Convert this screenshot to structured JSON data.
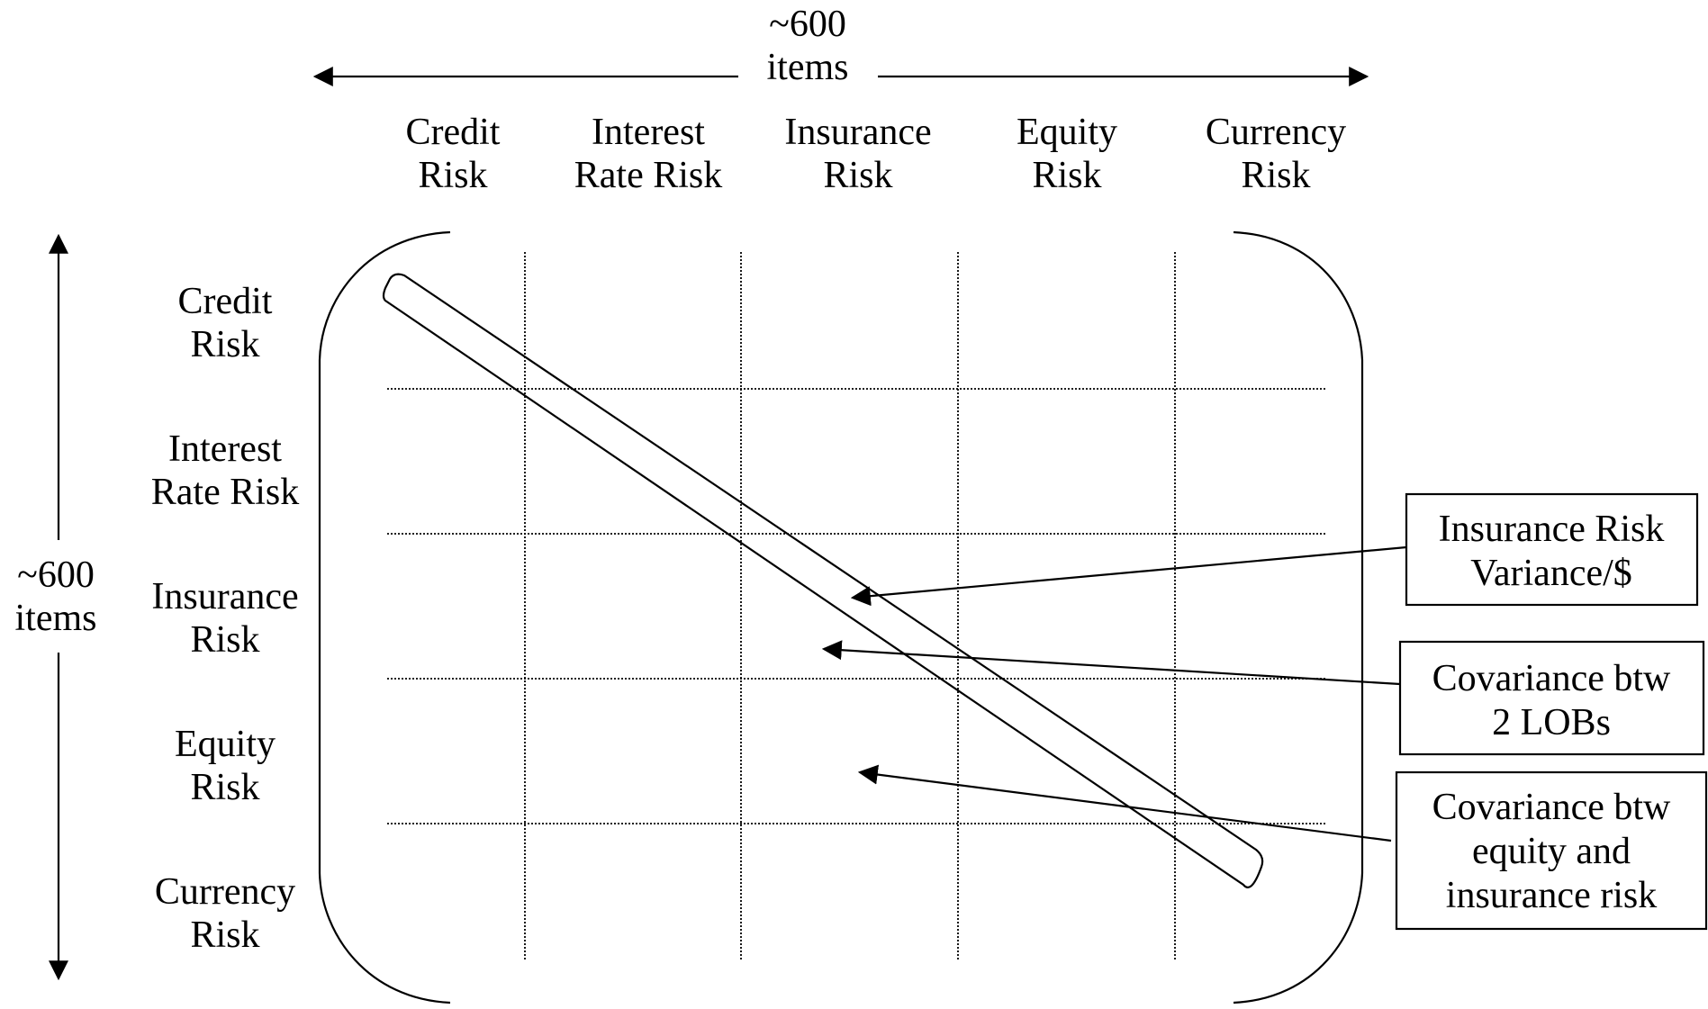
{
  "top_dimension": {
    "line1": "~600",
    "line2": "items"
  },
  "left_dimension": {
    "line1": "~600",
    "line2": "items"
  },
  "column_headers": [
    {
      "line1": "Credit",
      "line2": "Risk"
    },
    {
      "line1": "Interest",
      "line2": "Rate Risk"
    },
    {
      "line1": "Insurance",
      "line2": "Risk"
    },
    {
      "line1": "Equity",
      "line2": "Risk"
    },
    {
      "line1": "Currency",
      "line2": "Risk"
    }
  ],
  "row_headers": [
    {
      "line1": "Credit",
      "line2": "Risk"
    },
    {
      "line1": "Interest",
      "line2": "Rate Risk"
    },
    {
      "line1": "Insurance",
      "line2": "Risk"
    },
    {
      "line1": "Equity",
      "line2": "Risk"
    },
    {
      "line1": "Currency",
      "line2": "Risk"
    }
  ],
  "callouts": [
    {
      "lines": [
        "Insurance Risk",
        "Variance/$"
      ]
    },
    {
      "lines": [
        "Covariance btw",
        "2 LOBs"
      ]
    },
    {
      "lines": [
        "Covariance btw",
        "equity and",
        "insurance risk"
      ]
    }
  ]
}
